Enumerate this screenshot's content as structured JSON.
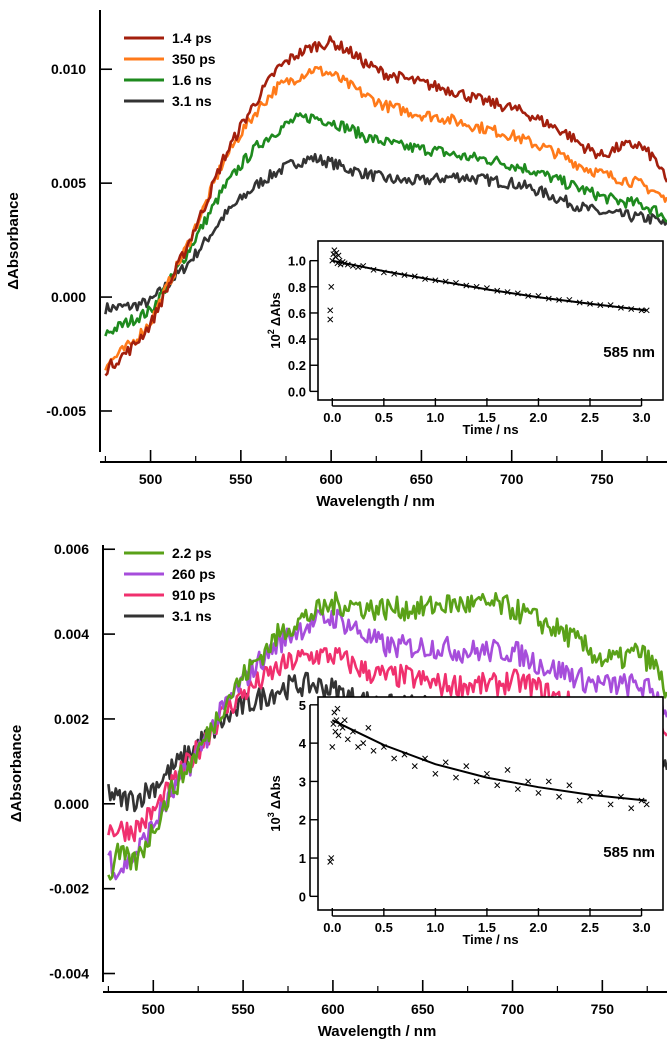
{
  "chart_data": [
    {
      "type": "line",
      "xlabel": "Wavelength / nm",
      "ylabel": "ΔAbsorbance",
      "xlim": [
        472,
        786
      ],
      "ylim": [
        -0.0068,
        0.0126
      ],
      "x_ticks": [
        500,
        550,
        600,
        650,
        700,
        750
      ],
      "x_tick_labels": [
        "500",
        "550",
        "600",
        "650",
        "700",
        "750"
      ],
      "y_ticks": [
        -0.005,
        0.0,
        0.005,
        0.01
      ],
      "y_tick_labels": [
        "-0.005",
        "0.000",
        "0.005",
        "0.010"
      ],
      "grid": false,
      "legend_position": "top-left",
      "x": [
        475,
        490,
        500,
        510,
        520,
        530,
        540,
        550,
        560,
        570,
        580,
        590,
        600,
        610,
        620,
        630,
        640,
        650,
        660,
        670,
        680,
        690,
        700,
        710,
        720,
        730,
        740,
        750,
        760,
        770,
        780,
        786
      ],
      "series": [
        {
          "name": "1.4 ps",
          "color": "#a31f0d",
          "values": [
            -0.0032,
            -0.0022,
            -0.0012,
            0.0005,
            0.0022,
            0.004,
            0.006,
            0.0075,
            0.0088,
            0.01,
            0.0106,
            0.011,
            0.0112,
            0.0108,
            0.0102,
            0.0098,
            0.0096,
            0.0094,
            0.0092,
            0.009,
            0.0087,
            0.0085,
            0.0083,
            0.008,
            0.0076,
            0.0072,
            0.0066,
            0.0062,
            0.0066,
            0.0067,
            0.006,
            0.005
          ]
        },
        {
          "name": "350 ps",
          "color": "#ff7a1a",
          "values": [
            -0.003,
            -0.002,
            -0.0011,
            0.0006,
            0.0022,
            0.004,
            0.0059,
            0.0072,
            0.0083,
            0.0092,
            0.0096,
            0.01,
            0.0098,
            0.0093,
            0.0088,
            0.0084,
            0.0082,
            0.008,
            0.0079,
            0.0077,
            0.0075,
            0.0073,
            0.0071,
            0.0068,
            0.0065,
            0.0061,
            0.0057,
            0.0054,
            0.0052,
            0.005,
            0.0046,
            0.0042
          ]
        },
        {
          "name": "1.6 ns",
          "color": "#1e8a1e",
          "values": [
            -0.0016,
            -0.001,
            -0.0006,
            0.0006,
            0.0019,
            0.0033,
            0.0047,
            0.0058,
            0.0067,
            0.0073,
            0.0078,
            0.0079,
            0.0077,
            0.0074,
            0.007,
            0.0068,
            0.0066,
            0.0065,
            0.0064,
            0.0062,
            0.0061,
            0.006,
            0.0058,
            0.0056,
            0.0053,
            0.005,
            0.0047,
            0.0044,
            0.0042,
            0.0041,
            0.0038,
            0.0034
          ]
        },
        {
          "name": "3.1 ns",
          "color": "#333333",
          "values": [
            -0.0005,
            -0.0004,
            -0.0002,
            0.0006,
            0.0014,
            0.0024,
            0.0035,
            0.0043,
            0.005,
            0.0055,
            0.0059,
            0.0061,
            0.0059,
            0.0056,
            0.0054,
            0.0052,
            0.0051,
            0.0051,
            0.0052,
            0.0053,
            0.0052,
            0.0051,
            0.005,
            0.0048,
            0.0045,
            0.0042,
            0.0039,
            0.0037,
            0.0036,
            0.0035,
            0.0034,
            0.0031
          ]
        }
      ],
      "inset": {
        "type": "scatter",
        "xlabel": "Time / ns",
        "ylabel": "10² ΔAbs",
        "ylabel_base": "10",
        "ylabel_exp": "2",
        "ylabel_rest": " ΔAbs",
        "annotation": "585 nm",
        "xlim": [
          -0.1,
          3.15
        ],
        "ylim": [
          -0.02,
          1.12
        ],
        "x_ticks": [
          0,
          0.5,
          1,
          1.5,
          2,
          2.5,
          3
        ],
        "x_tick_labels": [
          "0.0",
          "0.5",
          "1.0",
          "1.5",
          "2.0",
          "2.5",
          "3.0"
        ],
        "y_ticks": [
          0,
          0.2,
          0.4,
          0.6,
          0.8,
          1.0
        ],
        "y_tick_labels": [
          "0.0",
          "0.2",
          "0.4",
          "0.6",
          "0.8",
          "1.0"
        ],
        "fit": {
          "x": [
            0,
            0.5,
            1,
            1.5,
            2,
            2.5,
            3.05
          ],
          "y": [
            1.0,
            0.92,
            0.85,
            0.78,
            0.72,
            0.67,
            0.62
          ]
        },
        "points": {
          "x": [
            -0.02,
            -0.02,
            -0.01,
            0.0,
            0.01,
            0.02,
            0.03,
            0.04,
            0.05,
            0.06,
            0.07,
            0.08,
            0.1,
            0.12,
            0.15,
            0.2,
            0.25,
            0.3,
            0.4,
            0.5,
            0.6,
            0.7,
            0.8,
            0.9,
            1.0,
            1.1,
            1.2,
            1.3,
            1.4,
            1.5,
            1.6,
            1.7,
            1.8,
            1.9,
            2.0,
            2.1,
            2.2,
            2.3,
            2.4,
            2.5,
            2.6,
            2.7,
            2.8,
            2.9,
            3.0,
            3.05
          ],
          "y": [
            0.62,
            0.55,
            0.8,
            1.0,
            1.05,
            1.08,
            1.03,
            1.06,
            0.98,
            1.04,
            1.0,
            0.97,
            0.99,
            0.98,
            0.97,
            0.96,
            0.95,
            0.96,
            0.93,
            0.91,
            0.9,
            0.89,
            0.88,
            0.86,
            0.85,
            0.84,
            0.83,
            0.81,
            0.8,
            0.79,
            0.77,
            0.76,
            0.75,
            0.73,
            0.73,
            0.71,
            0.7,
            0.7,
            0.68,
            0.67,
            0.66,
            0.66,
            0.64,
            0.63,
            0.62,
            0.62
          ]
        }
      }
    },
    {
      "type": "line",
      "xlabel": "Wavelength / nm",
      "ylabel": "ΔAbsorbance",
      "xlim": [
        472,
        786
      ],
      "ylim": [
        -0.0042,
        0.0061
      ],
      "x_ticks": [
        500,
        550,
        600,
        650,
        700,
        750
      ],
      "x_tick_labels": [
        "500",
        "550",
        "600",
        "650",
        "700",
        "750"
      ],
      "y_ticks": [
        -0.004,
        -0.002,
        0.0,
        0.002,
        0.004,
        0.006
      ],
      "y_tick_labels": [
        "-0.004",
        "-0.002",
        "0.000",
        "0.002",
        "0.004",
        "0.006"
      ],
      "grid": false,
      "legend_position": "top-left",
      "x": [
        475,
        480,
        490,
        500,
        510,
        520,
        530,
        540,
        550,
        560,
        570,
        580,
        590,
        600,
        610,
        620,
        630,
        640,
        650,
        660,
        670,
        680,
        690,
        700,
        710,
        720,
        730,
        740,
        750,
        760,
        770,
        780,
        786
      ],
      "series": [
        {
          "name": "2.2 ps",
          "color": "#5aa118",
          "values": [
            -0.0018,
            -0.0012,
            -0.0014,
            -0.0006,
            0.0003,
            0.0009,
            0.0016,
            0.0024,
            0.003,
            0.0035,
            0.004,
            0.0043,
            0.0045,
            0.0047,
            0.0047,
            0.0046,
            0.0046,
            0.0046,
            0.0046,
            0.0047,
            0.0047,
            0.0047,
            0.0047,
            0.0046,
            0.0044,
            0.0042,
            0.004,
            0.0037,
            0.0034,
            0.0034,
            0.0036,
            0.0032,
            0.0026
          ]
        },
        {
          "name": "260 ps",
          "color": "#a64ddb",
          "values": [
            -0.0012,
            -0.0016,
            -0.0012,
            -0.0005,
            0.0002,
            0.0009,
            0.0016,
            0.0023,
            0.0029,
            0.0034,
            0.0038,
            0.0041,
            0.0043,
            0.0044,
            0.0042,
            0.0039,
            0.0037,
            0.0037,
            0.0037,
            0.0037,
            0.0036,
            0.0036,
            0.0036,
            0.0036,
            0.0034,
            0.0032,
            0.0031,
            0.0029,
            0.0028,
            0.0028,
            0.0028,
            0.0026,
            0.0022
          ]
        },
        {
          "name": "910 ps",
          "color": "#f0306e",
          "values": [
            -0.0006,
            -0.0006,
            -0.0006,
            -0.0002,
            0.0004,
            0.001,
            0.0016,
            0.0022,
            0.0026,
            0.0029,
            0.0032,
            0.0034,
            0.0035,
            0.0035,
            0.0033,
            0.0031,
            0.003,
            0.003,
            0.0029,
            0.0028,
            0.0028,
            0.0028,
            0.0028,
            0.0029,
            0.0028,
            0.0026,
            0.0024,
            0.0022,
            0.0021,
            0.0021,
            0.0022,
            0.002,
            0.0016
          ]
        },
        {
          "name": "3.1 ns",
          "color": "#333333",
          "values": [
            0.0003,
            0.0001,
            0.0001,
            0.0004,
            0.0008,
            0.0012,
            0.0016,
            0.002,
            0.0023,
            0.0025,
            0.0027,
            0.0028,
            0.0028,
            0.0027,
            0.0025,
            0.0024,
            0.0023,
            0.0023,
            0.0023,
            0.0022,
            0.0021,
            0.0021,
            0.0021,
            0.0022,
            0.0021,
            0.002,
            0.0018,
            0.0016,
            0.0015,
            0.0015,
            0.0014,
            0.0012,
            0.001
          ]
        }
      ],
      "inset": {
        "type": "scatter",
        "xlabel": "Time / ns",
        "ylabel": "10³ ΔAbs",
        "ylabel_base": "10",
        "ylabel_exp": "3",
        "ylabel_rest": " ΔAbs",
        "annotation": "585 nm",
        "xlim": [
          -0.1,
          3.15
        ],
        "ylim": [
          -0.2,
          5.1
        ],
        "x_ticks": [
          0,
          0.5,
          1,
          1.5,
          2,
          2.5,
          3
        ],
        "x_tick_labels": [
          "0.0",
          "0.5",
          "1.0",
          "1.5",
          "2.0",
          "2.5",
          "3.0"
        ],
        "y_ticks": [
          0,
          1,
          2,
          3,
          4,
          5
        ],
        "y_tick_labels": [
          "0",
          "1",
          "2",
          "3",
          "4",
          "5"
        ],
        "fit": {
          "x": [
            0,
            0.5,
            1,
            1.5,
            2,
            2.5,
            3.05
          ],
          "y": [
            4.6,
            3.95,
            3.45,
            3.1,
            2.85,
            2.65,
            2.5
          ]
        },
        "points": {
          "x": [
            -0.02,
            -0.01,
            0.0,
            0.01,
            0.02,
            0.03,
            0.04,
            0.05,
            0.06,
            0.08,
            0.1,
            0.12,
            0.15,
            0.2,
            0.25,
            0.3,
            0.35,
            0.4,
            0.5,
            0.6,
            0.7,
            0.8,
            0.9,
            1.0,
            1.1,
            1.2,
            1.3,
            1.4,
            1.5,
            1.6,
            1.7,
            1.8,
            1.9,
            2.0,
            2.1,
            2.2,
            2.3,
            2.4,
            2.5,
            2.6,
            2.7,
            2.8,
            2.9,
            3.0,
            3.05
          ],
          "y": [
            0.9,
            1.0,
            3.9,
            4.5,
            4.8,
            4.3,
            4.6,
            4.9,
            4.2,
            4.5,
            4.4,
            4.6,
            4.1,
            4.3,
            3.9,
            4.0,
            4.4,
            3.8,
            3.9,
            3.6,
            3.7,
            3.4,
            3.6,
            3.2,
            3.5,
            3.1,
            3.4,
            3.0,
            3.2,
            2.9,
            3.3,
            2.8,
            3.0,
            2.7,
            3.0,
            2.6,
            2.9,
            2.5,
            2.6,
            2.7,
            2.4,
            2.6,
            2.3,
            2.5,
            2.4
          ]
        }
      }
    }
  ]
}
